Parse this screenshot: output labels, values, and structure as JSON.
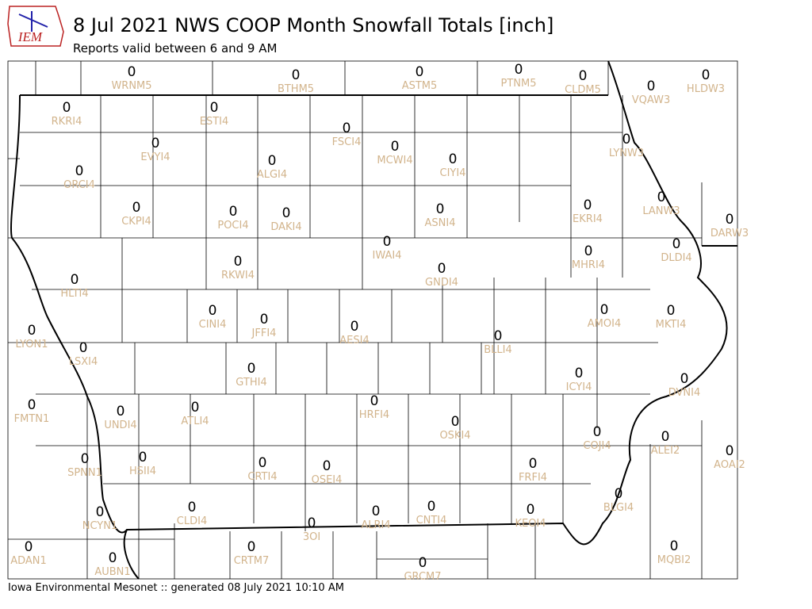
{
  "header": {
    "logo": "IEM",
    "title": "8 Jul 2021 NWS COOP Month Snowfall Totals [inch]",
    "subtitle": "Reports valid between 6 and 9 AM"
  },
  "stations": [
    {
      "name": "WRNM5",
      "value": 0
    },
    {
      "name": "BTHM5",
      "value": 0
    },
    {
      "name": "ASTM5",
      "value": 0
    },
    {
      "name": "PTNM5",
      "value": 0
    },
    {
      "name": "CLDM5",
      "value": 0
    },
    {
      "name": "VQAW3",
      "value": 0
    },
    {
      "name": "HLDW3",
      "value": 0
    },
    {
      "name": "RKRI4",
      "value": 0
    },
    {
      "name": "ESTI4",
      "value": 0
    },
    {
      "name": "FSCI4",
      "value": 0
    },
    {
      "name": "MCWI4",
      "value": 0
    },
    {
      "name": "CIYI4",
      "value": 0
    },
    {
      "name": "EVYI4",
      "value": 0
    },
    {
      "name": "ALGI4",
      "value": 0
    },
    {
      "name": "ORCI4",
      "value": 0
    },
    {
      "name": "LYNW3",
      "value": 0
    },
    {
      "name": "LANW3",
      "value": 0
    },
    {
      "name": "DARW3",
      "value": 0
    },
    {
      "name": "CKPI4",
      "value": 0
    },
    {
      "name": "POCI4",
      "value": 0
    },
    {
      "name": "DAKI4",
      "value": 0
    },
    {
      "name": "ASNI4",
      "value": 0
    },
    {
      "name": "EKRI4",
      "value": 0
    },
    {
      "name": "DLDI4",
      "value": 0
    },
    {
      "name": "IWAI4",
      "value": 0
    },
    {
      "name": "MHRI4",
      "value": 0
    },
    {
      "name": "RKWI4",
      "value": 0
    },
    {
      "name": "GNDI4",
      "value": 0
    },
    {
      "name": "HLTI4",
      "value": 0
    },
    {
      "name": "AMOI4",
      "value": 0
    },
    {
      "name": "MKTI4",
      "value": 0
    },
    {
      "name": "CINI4",
      "value": 0
    },
    {
      "name": "JFFI4",
      "value": 0
    },
    {
      "name": "AESI4",
      "value": 0
    },
    {
      "name": "BLLI4",
      "value": 0
    },
    {
      "name": "LYON1",
      "value": 0
    },
    {
      "name": "LSXI4",
      "value": 0
    },
    {
      "name": "GTHI4",
      "value": 0
    },
    {
      "name": "ICYI4",
      "value": 0
    },
    {
      "name": "DVNI4",
      "value": 0
    },
    {
      "name": "HRFI4",
      "value": 0
    },
    {
      "name": "FMTN1",
      "value": 0
    },
    {
      "name": "UNDI4",
      "value": 0
    },
    {
      "name": "ATLI4",
      "value": 0
    },
    {
      "name": "OSKI4",
      "value": 0
    },
    {
      "name": "COJI4",
      "value": 0
    },
    {
      "name": "ALEI2",
      "value": 0
    },
    {
      "name": "AOAI2",
      "value": 0
    },
    {
      "name": "SPNN1",
      "value": 0
    },
    {
      "name": "HSII4",
      "value": 0
    },
    {
      "name": "CRTI4",
      "value": 0
    },
    {
      "name": "OSEI4",
      "value": 0
    },
    {
      "name": "FRFI4",
      "value": 0
    },
    {
      "name": "BLGI4",
      "value": 0
    },
    {
      "name": "CLDI4",
      "value": 0
    },
    {
      "name": "NCYN1",
      "value": 0
    },
    {
      "name": "ALRI4",
      "value": 0
    },
    {
      "name": "CNTI4",
      "value": 0
    },
    {
      "name": "KEOI4",
      "value": 0
    },
    {
      "name": "3OI",
      "value": 0
    },
    {
      "name": "ADAN1",
      "value": 0
    },
    {
      "name": "AUBN1",
      "value": 0
    },
    {
      "name": "CRTM7",
      "value": 0
    },
    {
      "name": "MQBI2",
      "value": 0
    },
    {
      "name": "GRCM7",
      "value": 0
    }
  ],
  "footer": "Iowa Environmental Mesonet :: generated 08 July 2021 10:10 AM"
}
